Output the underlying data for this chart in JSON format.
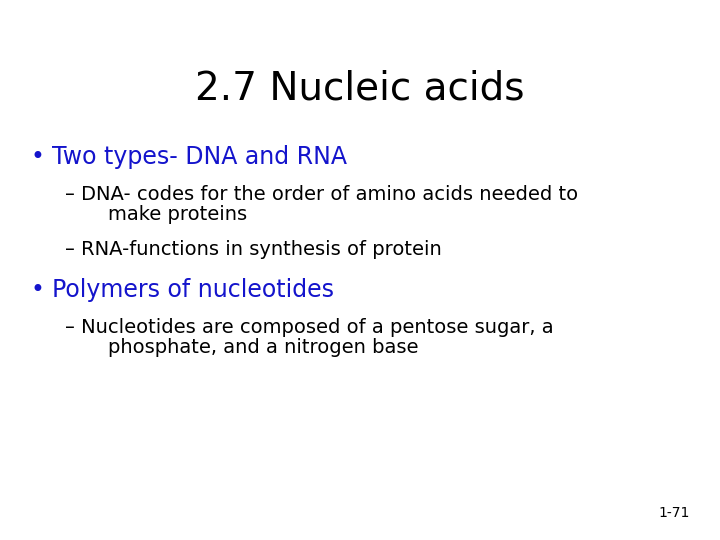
{
  "title": "2.7 Nucleic acids",
  "title_color": "#000000",
  "title_fontsize": 28,
  "background_color": "#ffffff",
  "bullet1_text": "Two types- DNA and RNA",
  "bullet1_color": "#1414CC",
  "bullet1_fontsize": 17,
  "sub_color": "#000000",
  "sub_fontsize": 14,
  "sub1a_line1": "– DNA- codes for the order of amino acids needed to",
  "sub1a_line2": "    make proteins",
  "sub1b_text": "– RNA-functions in synthesis of protein",
  "bullet2_text": "Polymers of nucleotides",
  "bullet2_color": "#1414CC",
  "bullet2_fontsize": 17,
  "sub2a_line1": "– Nucleotides are composed of a pentose sugar, a",
  "sub2a_line2": "    phosphate, and a nitrogen base",
  "footnote": "1-71",
  "footnote_color": "#000000",
  "footnote_fontsize": 10
}
